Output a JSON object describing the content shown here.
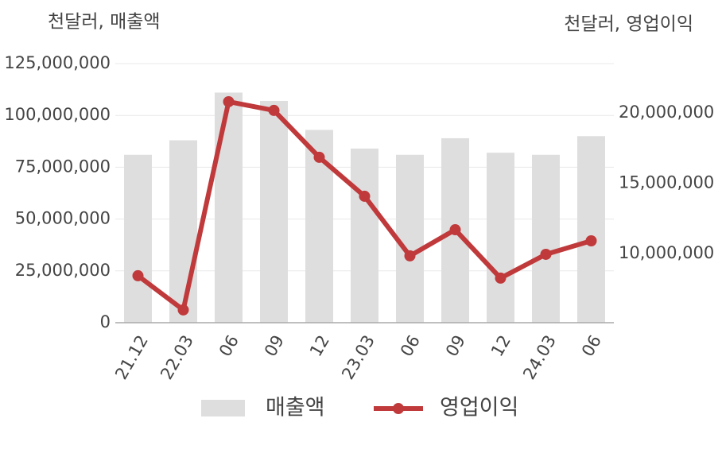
{
  "chart_data": {
    "type": "combo",
    "y_label": "천달러, 매출액",
    "y2_label": "천달러, 영업이익",
    "categories": [
      "21.12",
      "22.03",
      "06",
      "09",
      "12",
      "23.03",
      "06",
      "09",
      "12",
      "24.03",
      "06"
    ],
    "series": [
      {
        "name": "매출액",
        "kind": "bar",
        "color": "#dedede",
        "values": [
          81000000,
          88000000,
          111000000,
          107000000,
          93000000,
          84000000,
          81000000,
          89000000,
          82000000,
          81000000,
          90000000
        ]
      },
      {
        "name": "영업이익",
        "kind": "line",
        "axis": "y2",
        "color": "#c0393b",
        "values": [
          8420000,
          5990000,
          20790000,
          20170000,
          16840000,
          14070000,
          9830000,
          11690000,
          8250000,
          9940000,
          10900000
        ]
      }
    ],
    "ylim": [
      0,
      125000000
    ],
    "yticks": [
      0,
      {
        "value": 25000000,
        "label": "25,000,000"
      },
      {
        "value": 50000000,
        "label": "50,000,000"
      },
      {
        "value": 75000000,
        "label": "75,000,000"
      },
      {
        "value": 100000000,
        "label": "100,000,000"
      },
      {
        "value": 125000000,
        "label": "125,000,000"
      }
    ],
    "y2lim": [
      5080000,
      23500000
    ],
    "y2ticks": [
      {
        "value": 10000000,
        "label": "10,000,000"
      },
      {
        "value": 15000000,
        "label": "15,000,000"
      },
      {
        "value": 20000000,
        "label": "20,000,000"
      }
    ],
    "grid": true
  }
}
